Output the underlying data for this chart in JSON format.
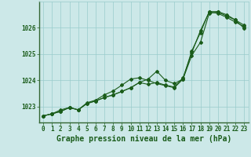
{
  "title": "Graphe pression niveau de la mer (hPa)",
  "background_color": "#cce8e8",
  "plot_background": "#cce8e8",
  "grid_color": "#99cccc",
  "line_color": "#1a5c1a",
  "marker_color": "#1a5c1a",
  "xlim": [
    -0.5,
    23.5
  ],
  "ylim": [
    1022.4,
    1027.0
  ],
  "yticks": [
    1023,
    1024,
    1025,
    1026
  ],
  "xticks": [
    0,
    1,
    2,
    3,
    4,
    5,
    6,
    7,
    8,
    9,
    10,
    11,
    12,
    13,
    14,
    15,
    16,
    17,
    18,
    19,
    20,
    21,
    22,
    23
  ],
  "series1": [
    1022.65,
    1022.73,
    1022.82,
    1022.97,
    1022.88,
    1023.12,
    1023.22,
    1023.35,
    1023.45,
    1023.58,
    1023.72,
    1023.92,
    1024.05,
    1024.35,
    1024.0,
    1023.88,
    1024.05,
    1024.95,
    1025.45,
    1026.55,
    1026.6,
    1026.45,
    1026.3,
    1025.98
  ],
  "series2": [
    1022.65,
    1022.73,
    1022.82,
    1022.97,
    1022.88,
    1023.12,
    1023.22,
    1023.35,
    1023.45,
    1023.58,
    1023.72,
    1023.92,
    1023.85,
    1023.92,
    1023.82,
    1023.75,
    1024.1,
    1025.05,
    1025.9,
    1026.6,
    1026.55,
    1026.4,
    1026.22,
    1026.05
  ],
  "series3": [
    1022.65,
    1022.73,
    1022.88,
    1022.97,
    1022.88,
    1023.15,
    1023.25,
    1023.45,
    1023.6,
    1023.82,
    1024.05,
    1024.1,
    1024.0,
    1023.88,
    1023.8,
    1023.72,
    1024.05,
    1025.12,
    1025.82,
    1026.62,
    1026.62,
    1026.5,
    1026.3,
    1026.1
  ],
  "tick_fontsize": 5.5,
  "title_fontsize": 7.0
}
